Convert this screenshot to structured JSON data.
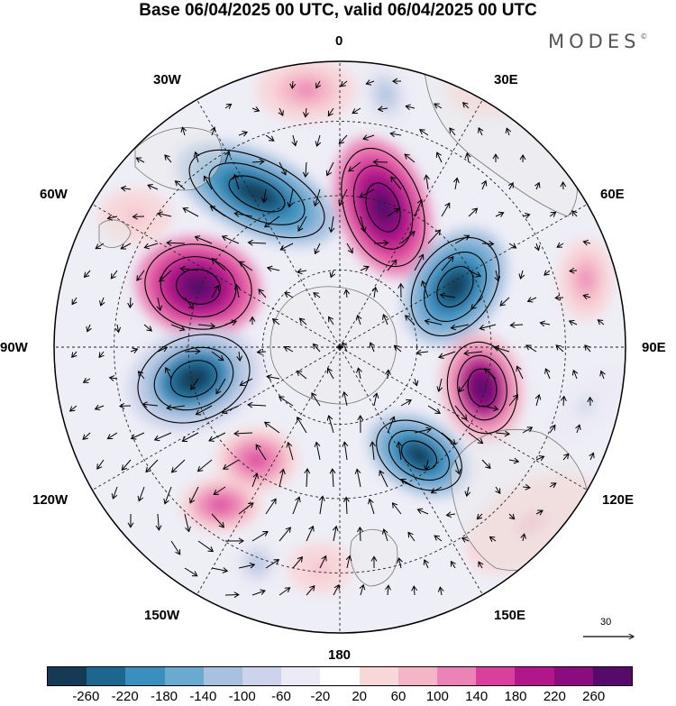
{
  "title": "Base 06/04/2025 00 UTC, valid 06/04/2025 00 UTC",
  "brand": "MODES",
  "brand_mark": "©",
  "longitude_labels": {
    "lon_0": "0",
    "lon_30e": "30E",
    "lon_60e": "60E",
    "lon_90e": "90E",
    "lon_120e": "120E",
    "lon_150e": "150E",
    "lon_180": "180",
    "lon_150w": "150W",
    "lon_120w": "120W",
    "lon_90w": "90W",
    "lon_60w": "60W",
    "lon_30w": "30W"
  },
  "wind_scale": {
    "value": "30"
  },
  "colorbar": {
    "colors": [
      "#153a55",
      "#1d6690",
      "#3b8fbe",
      "#6aa9d0",
      "#a7c1df",
      "#cdd3ea",
      "#ecebf5",
      "#ffffff",
      "#f8d7d9",
      "#f4b6c6",
      "#ec82b5",
      "#d9409b",
      "#b1168a",
      "#8a0c7e",
      "#560a6b"
    ],
    "ticks": [
      "-260",
      "-220",
      "-180",
      "-140",
      "-100",
      "-60",
      "-20",
      "20",
      "60",
      "100",
      "140",
      "180",
      "220",
      "260"
    ]
  },
  "anomaly_centers": [
    {
      "kind": "negative",
      "value": -290
    },
    {
      "kind": "positive",
      "value": 290
    },
    {
      "kind": "positive",
      "value": 290
    },
    {
      "kind": "negative",
      "value": -290
    },
    {
      "kind": "positive",
      "value": 270
    },
    {
      "kind": "negative",
      "value": -290
    },
    {
      "kind": "negative",
      "value": -270
    },
    {
      "kind": "positive",
      "value": 150
    },
    {
      "kind": "positive",
      "value": 150
    },
    {
      "kind": "negative",
      "value": -110
    },
    {
      "kind": "positive",
      "value": 110
    },
    {
      "kind": "positive",
      "value": 110
    },
    {
      "kind": "positive",
      "value": 70
    },
    {
      "kind": "positive",
      "value": 70
    },
    {
      "kind": "negative",
      "value": -110
    },
    {
      "kind": "negative",
      "value": -70
    },
    {
      "kind": "positive",
      "value": 70
    },
    {
      "kind": "positive",
      "value": 70
    }
  ]
}
